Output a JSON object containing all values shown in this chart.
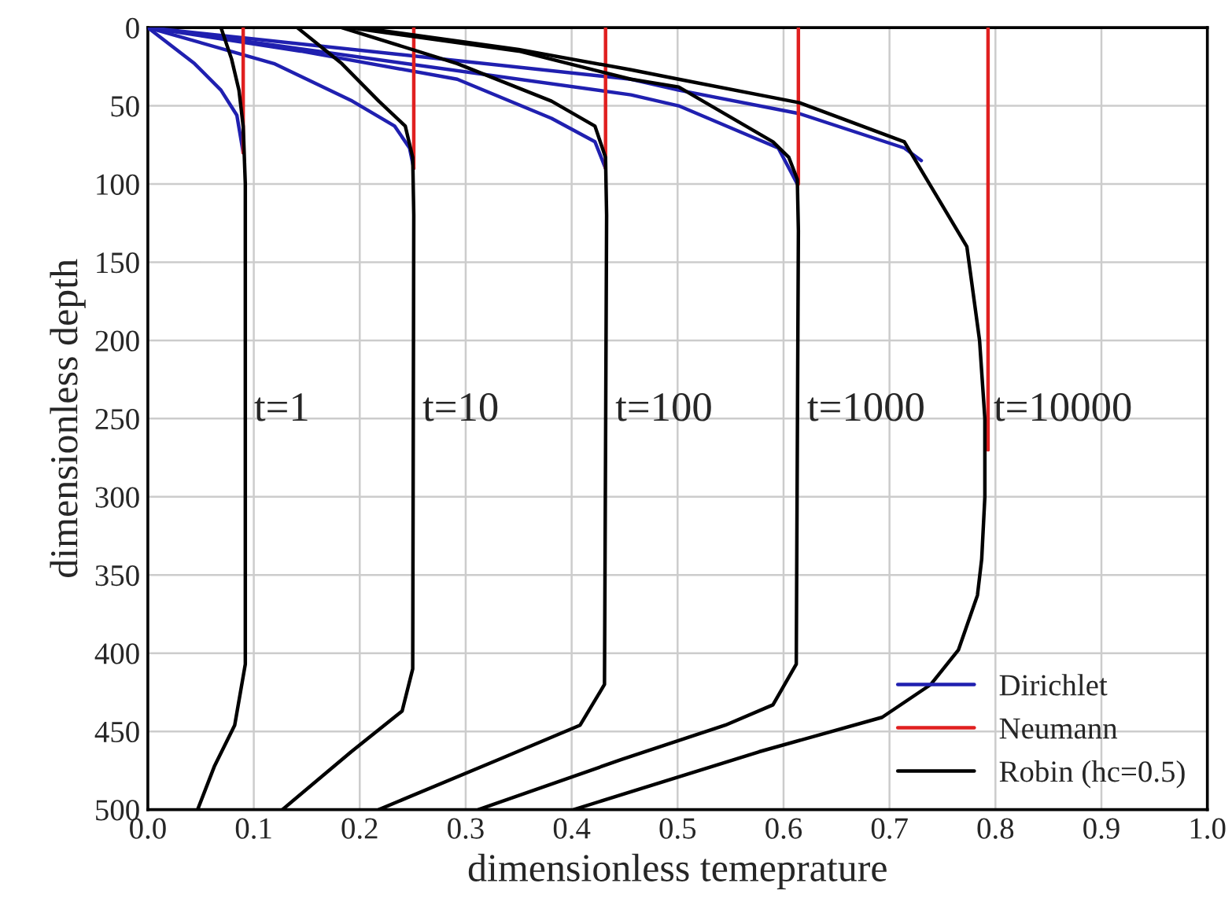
{
  "chart_data": {
    "type": "line",
    "xlabel": "dimensionless temeprature",
    "ylabel": "dimensionless depth",
    "xlim": [
      0,
      1
    ],
    "ylim": [
      500,
      0
    ],
    "xticks": [
      {
        "value": 0,
        "label": "0.0"
      },
      {
        "value": 0.1,
        "label": "0.1"
      },
      {
        "value": 0.2,
        "label": "0.2"
      },
      {
        "value": 0.3,
        "label": "0.3"
      },
      {
        "value": 0.4,
        "label": "0.4"
      },
      {
        "value": 0.5,
        "label": "0.5"
      },
      {
        "value": 0.6,
        "label": "0.6"
      },
      {
        "value": 0.7,
        "label": "0.7"
      },
      {
        "value": 0.8,
        "label": "0.8"
      },
      {
        "value": 0.9,
        "label": "0.9"
      },
      {
        "value": 1,
        "label": "1.0"
      }
    ],
    "yticks": [
      0,
      50,
      100,
      150,
      200,
      250,
      300,
      350,
      400,
      450,
      500
    ],
    "grid": true,
    "legend": "bottom right",
    "marker": "none",
    "line_style": "solid",
    "series": [
      {
        "name": "Dirichlet",
        "color": "#2020b0",
        "x": [
          0,
          0.044,
          0.069,
          0.084,
          0.09
        ],
        "values": [
          0,
          23,
          40,
          56,
          80
        ]
      },
      {
        "color": "#2020b0",
        "x": [
          0,
          0.119,
          0.193,
          0.233,
          0.247,
          0.251
        ],
        "values": [
          0,
          23,
          47,
          63,
          77,
          90
        ]
      },
      {
        "color": "#2020b0",
        "x": [
          0,
          0.144,
          0.292,
          0.381,
          0.422,
          0.432
        ],
        "values": [
          0,
          15,
          33,
          58,
          73,
          90
        ]
      },
      {
        "color": "#2020b0",
        "x": [
          0,
          0.456,
          0.501,
          0.595,
          0.613
        ],
        "values": [
          0,
          43,
          50,
          77,
          100
        ]
      },
      {
        "color": "#2020b0",
        "x": [
          0,
          0.456,
          0.501,
          0.615,
          0.714,
          0.73
        ],
        "values": [
          0,
          33,
          40,
          55,
          77,
          85
        ]
      },
      {
        "name": "Neumann",
        "color": "#e02020",
        "x": [
          0.09,
          0.09
        ],
        "values": [
          0,
          80
        ]
      },
      {
        "color": "#e02020",
        "x": [
          0.251,
          0.251
        ],
        "values": [
          0,
          90
        ]
      },
      {
        "color": "#e02020",
        "x": [
          0.432,
          0.432
        ],
        "values": [
          0,
          90
        ]
      },
      {
        "color": "#e02020",
        "x": [
          0.614,
          0.614
        ],
        "values": [
          0,
          100
        ]
      },
      {
        "color": "#e02020",
        "x": [
          0.793,
          0.793
        ],
        "values": [
          0,
          270
        ]
      },
      {
        "name": "Robin (hc=0.5)",
        "color": "#000000",
        "x": [
          0.069,
          0.079,
          0.086,
          0.09,
          0.092,
          0.092,
          0.082,
          0.063,
          0.047
        ],
        "values": [
          0,
          20,
          40,
          63,
          100,
          407,
          446,
          472,
          500
        ]
      },
      {
        "color": "#000000",
        "x": [
          0.141,
          0.183,
          0.218,
          0.243,
          0.25,
          0.251,
          0.25,
          0.24,
          0.192,
          0.127
        ],
        "values": [
          0,
          23,
          47,
          63,
          83,
          120,
          410,
          437,
          463,
          500
        ]
      },
      {
        "color": "#000000",
        "x": [
          0.183,
          0.292,
          0.381,
          0.422,
          0.432,
          0.433,
          0.431,
          0.408,
          0.331,
          0.218
        ],
        "values": [
          0,
          23,
          47,
          63,
          83,
          120,
          420,
          446,
          468,
          500
        ]
      },
      {
        "color": "#000000",
        "x": [
          0.19,
          0.35,
          0.456,
          0.501,
          0.59,
          0.605,
          0.613,
          0.614,
          0.612,
          0.59,
          0.545,
          0.447,
          0.312
        ],
        "values": [
          0,
          15,
          33,
          38,
          73,
          83,
          97,
          130,
          407,
          433,
          446,
          468,
          500
        ]
      },
      {
        "color": "#000000",
        "x": [
          0.2,
          0.35,
          0.456,
          0.501,
          0.615,
          0.714,
          0.773,
          0.785,
          0.79,
          0.79,
          0.787,
          0.783,
          0.765,
          0.739,
          0.693,
          0.577,
          0.402
        ],
        "values": [
          0,
          14,
          27,
          33,
          48,
          73,
          140,
          200,
          250,
          300,
          340,
          363,
          398,
          420,
          441,
          463,
          500
        ]
      }
    ],
    "annotations": [
      {
        "text": "t=1",
        "x": 0.092,
        "y": 245
      },
      {
        "text": "t=10",
        "x": 0.251,
        "y": 245
      },
      {
        "text": "t=100",
        "x": 0.433,
        "y": 245
      },
      {
        "text": "t=1000",
        "x": 0.614,
        "y": 245
      },
      {
        "text": "t=10000",
        "x": 0.79,
        "y": 245
      }
    ]
  }
}
